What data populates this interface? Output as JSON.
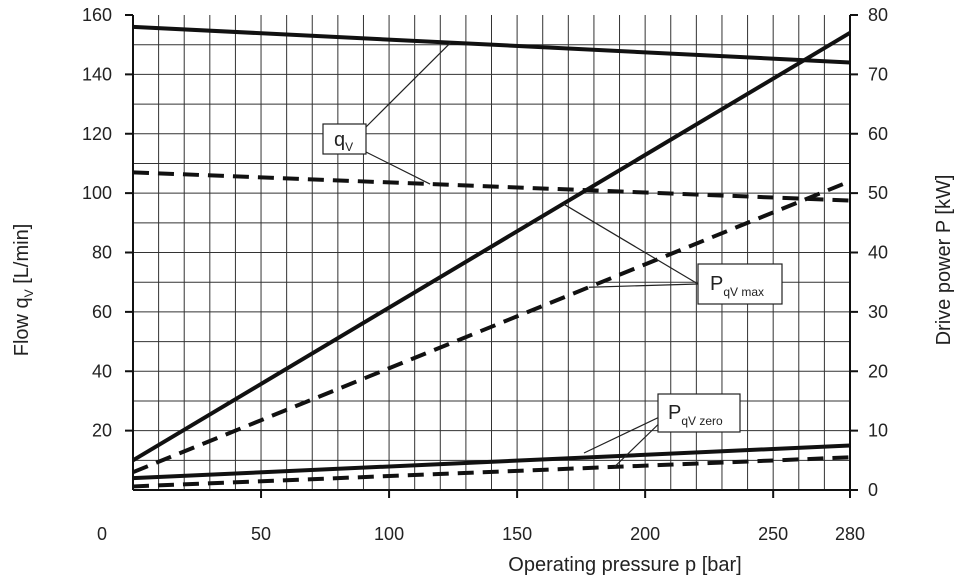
{
  "chart_data": {
    "type": "line",
    "xlabel": "Operating pressure p [bar]",
    "ylabel_left": "Flow q",
    "ylabel_left_sub": "V",
    "ylabel_left_unit": " [L/min]",
    "ylabel_right": "Drive power P [kW]",
    "xlim": [
      0,
      280
    ],
    "ylim_left": [
      0,
      160
    ],
    "ylim_right": [
      0,
      80
    ],
    "x_ticks": [
      0,
      50,
      100,
      150,
      200,
      250,
      280
    ],
    "y_left_ticks": [
      20,
      40,
      60,
      80,
      100,
      120,
      140,
      160
    ],
    "y_right_ticks": [
      0,
      10,
      20,
      30,
      40,
      50,
      60,
      70,
      80
    ],
    "grid": true,
    "series": [
      {
        "axis": "left",
        "style": "solid",
        "x": [
          0,
          280
        ],
        "y": [
          156,
          144
        ]
      },
      {
        "axis": "left",
        "style": "dashed",
        "x": [
          0,
          280
        ],
        "y": [
          107,
          97.5
        ]
      },
      {
        "axis": "right",
        "style": "solid",
        "x": [
          0,
          280
        ],
        "y": [
          5,
          77
        ]
      },
      {
        "axis": "right",
        "style": "dashed",
        "x": [
          0,
          280
        ],
        "y": [
          3,
          52
        ]
      },
      {
        "axis": "right",
        "style": "solid",
        "x": [
          0,
          280
        ],
        "y": [
          2,
          7.5
        ]
      },
      {
        "axis": "right",
        "style": "dashed",
        "x": [
          0,
          280
        ],
        "y": [
          0.6,
          5.5
        ]
      }
    ],
    "annotations": [
      {
        "main": "q",
        "sub": "V"
      },
      {
        "main": "P",
        "sub": "qV max"
      },
      {
        "main": "P",
        "sub": "qV zero"
      }
    ]
  }
}
